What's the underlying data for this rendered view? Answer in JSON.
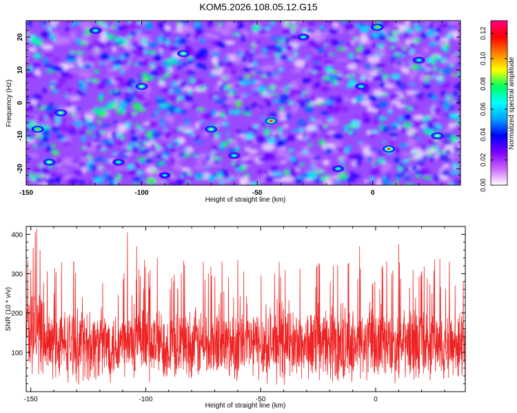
{
  "figure": {
    "title": "KOM5.2026.108.05.12.G15"
  },
  "chart_data": [
    {
      "type": "heatmap",
      "title": "KOM5.2026.108.05.12.G15",
      "xlabel": "Height of straight line (km)",
      "ylabel": "Frequency (Hz)",
      "xlim": [
        -150,
        38
      ],
      "ylim": [
        -25,
        25
      ],
      "xticks": [
        -150,
        -100,
        -50,
        0
      ],
      "xtick_labels": [
        "-150",
        "-100",
        "-50",
        "0"
      ],
      "yticks": [
        -20,
        -10,
        0,
        10,
        20
      ],
      "ytick_labels": [
        "-20",
        "-10",
        "0",
        "10",
        "20"
      ],
      "colorbar": {
        "label": "Normalized spectral amplitude",
        "range": [
          0,
          0.13
        ],
        "ticks": [
          0,
          0.02,
          0.04,
          0.06,
          0.08,
          0.1,
          0.12
        ],
        "tick_labels": [
          "0.00",
          "0.02",
          "0.04",
          "0.06",
          "0.08",
          "0.10",
          "0.12"
        ],
        "colors": [
          "#ffffff",
          "#cc66ff",
          "#7a00ff",
          "#0000ff",
          "#00a0ff",
          "#00ffff",
          "#00ff60",
          "#ffff00",
          "#ff8000",
          "#ff0000",
          "#ff0080"
        ]
      },
      "peaks": [
        {
          "x": -44,
          "y": -5.5,
          "v": 0.13
        },
        {
          "x": 7,
          "y": -14,
          "v": 0.12
        },
        {
          "x": -145,
          "y": -8,
          "v": 0.1
        },
        {
          "x": -135,
          "y": -3,
          "v": 0.09
        },
        {
          "x": -82,
          "y": 15,
          "v": 0.09
        },
        {
          "x": -120,
          "y": 22,
          "v": 0.08
        },
        {
          "x": -70,
          "y": -8,
          "v": 0.09
        },
        {
          "x": 2,
          "y": 23,
          "v": 0.1
        },
        {
          "x": -5,
          "y": 5,
          "v": 0.08
        },
        {
          "x": -15,
          "y": -20,
          "v": 0.08
        },
        {
          "x": 28,
          "y": -10,
          "v": 0.09
        },
        {
          "x": -110,
          "y": -18,
          "v": 0.08
        },
        {
          "x": -140,
          "y": -18,
          "v": 0.09
        },
        {
          "x": -100,
          "y": 5,
          "v": 0.09
        },
        {
          "x": -60,
          "y": -16,
          "v": 0.08
        },
        {
          "x": -30,
          "y": 20,
          "v": 0.08
        },
        {
          "x": 20,
          "y": 13,
          "v": 0.08
        },
        {
          "x": -90,
          "y": -22,
          "v": 0.07
        }
      ]
    },
    {
      "type": "line",
      "xlabel": "Height of straight line (km)",
      "ylabel": "SNR (10 * v/v)",
      "xlim": [
        -152,
        39
      ],
      "ylim": [
        0,
        420
      ],
      "xticks": [
        -150,
        -100,
        -50,
        0
      ],
      "xtick_labels": [
        "-150",
        "-100",
        "-50",
        "0"
      ],
      "yticks": [
        100,
        200,
        300,
        400
      ],
      "ytick_labels": [
        "100",
        "200",
        "300",
        "400"
      ],
      "color": "#ee2222",
      "n_points": 1900,
      "base_level": 120,
      "noise_amplitude": 75,
      "spikes": [
        {
          "x": -147.5,
          "y": 415
        },
        {
          "x": -149,
          "y": 365
        },
        {
          "x": -146,
          "y": 360
        },
        {
          "x": -150,
          "y": 310
        },
        {
          "x": -140,
          "y": 250
        },
        {
          "x": -108,
          "y": 405
        },
        {
          "x": -104,
          "y": 370
        },
        {
          "x": -95,
          "y": 340
        },
        {
          "x": -75,
          "y": 330
        },
        {
          "x": -60,
          "y": 335
        },
        {
          "x": -42,
          "y": 330
        },
        {
          "x": -12,
          "y": 325
        },
        {
          "x": -7,
          "y": 370
        },
        {
          "x": 7,
          "y": 300
        },
        {
          "x": 10,
          "y": 375
        },
        {
          "x": 20,
          "y": 305
        },
        {
          "x": 32,
          "y": 330
        },
        {
          "x": 38,
          "y": 280
        }
      ]
    }
  ]
}
